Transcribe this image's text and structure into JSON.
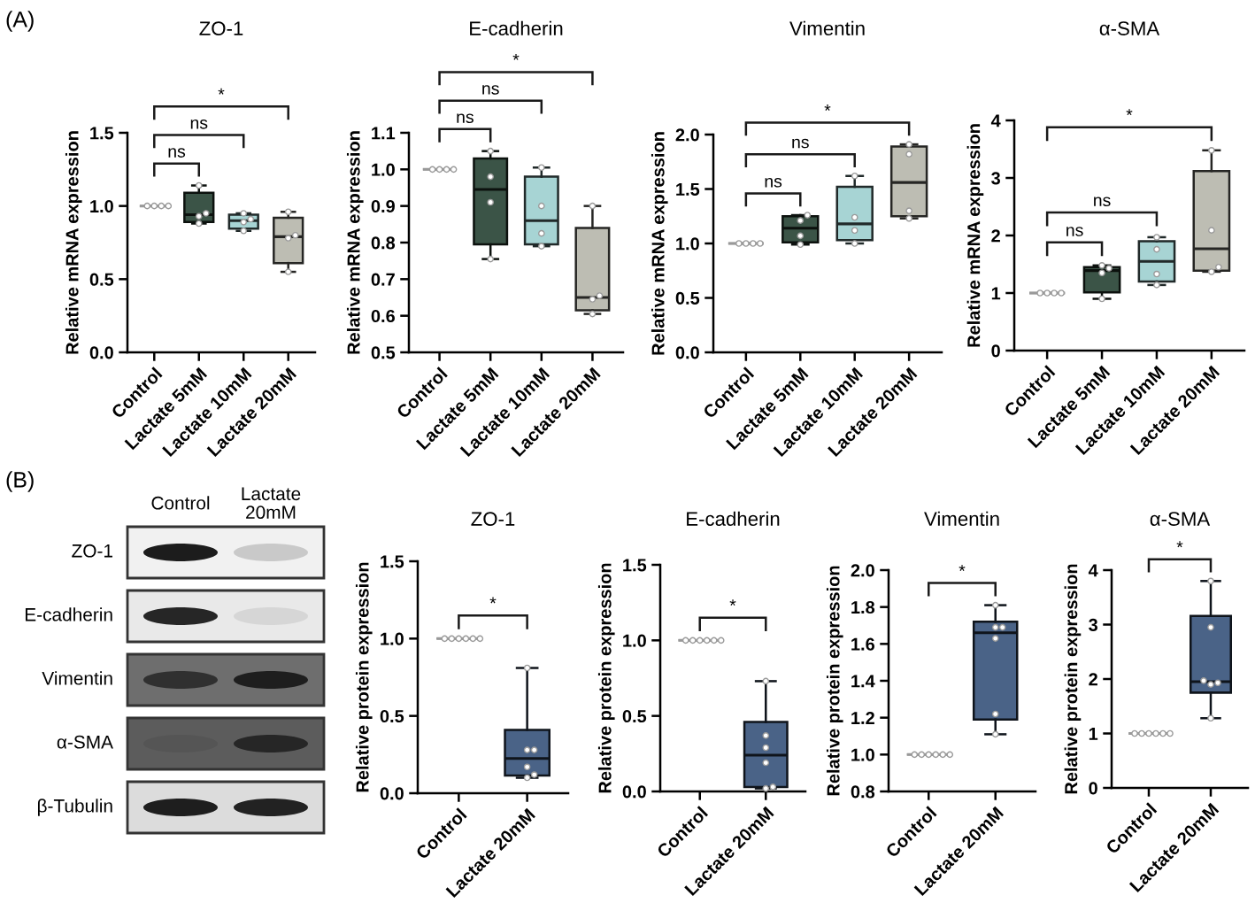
{
  "chart_data": [
    {
      "type": "box",
      "title": "ZO-1",
      "ylabel": "Relative mRNA expression",
      "categories": [
        "Control",
        "Lactate 5mM",
        "Lactate 10mM",
        "Lactate 20mM"
      ],
      "boxes": [
        {
          "low": 1,
          "q1": 1,
          "median": 1,
          "q3": 1,
          "high": 1
        },
        {
          "low": 0.88,
          "q1": 0.89,
          "median": 0.94,
          "q3": 1.09,
          "high": 1.14
        },
        {
          "low": 0.83,
          "q1": 0.845,
          "median": 0.9,
          "q3": 0.94,
          "high": 0.95
        },
        {
          "low": 0.55,
          "q1": 0.61,
          "median": 0.79,
          "q3": 0.92,
          "high": 0.96
        }
      ],
      "colors": [
        "#999999",
        "#3b5447",
        "#a7d4d4",
        "#bdbdb3"
      ],
      "series": [
        {
          "type": "scatter",
          "color": "#ffffff",
          "marker": "circle",
          "x": [
            "Control",
            "Control",
            "Control",
            "Control",
            "Lactate 5mM",
            "Lactate 5mM",
            "Lactate 5mM",
            "Lactate 5mM",
            "Lactate 10mM",
            "Lactate 10mM",
            "Lactate 10mM",
            "Lactate 10mM",
            "Lactate 20mM",
            "Lactate 20mM",
            "Lactate 20mM",
            "Lactate 20mM"
          ],
          "values": [
            1,
            1,
            1,
            1,
            0.88,
            0.93,
            0.95,
            1.14,
            0.83,
            0.89,
            0.91,
            0.95,
            0.55,
            0.78,
            0.8,
            0.96
          ]
        }
      ],
      "ylim": [
        0,
        1.5
      ],
      "yticks": [
        {
          "value": 0,
          "label": "0.0"
        },
        0.5,
        {
          "value": 1,
          "label": "1.0"
        },
        1.5
      ],
      "annotations": [
        "(A)",
        "ns",
        "ns",
        "*"
      ]
    },
    {
      "type": "box",
      "title": "E-cadherin",
      "ylabel": "Relative mRNA expression",
      "categories": [
        "Control",
        "Lactate 5mM",
        "Lactate 10mM",
        "Lactate 20mM"
      ],
      "boxes": [
        {
          "low": 1,
          "q1": 1,
          "median": 1,
          "q3": 1,
          "high": 1
        },
        {
          "low": 0.755,
          "q1": 0.795,
          "median": 0.945,
          "q3": 1.03,
          "high": 1.05
        },
        {
          "low": 0.79,
          "q1": 0.795,
          "median": 0.86,
          "q3": 0.98,
          "high": 1.005
        },
        {
          "low": 0.605,
          "q1": 0.615,
          "median": 0.65,
          "q3": 0.84,
          "high": 0.9
        }
      ],
      "colors": [
        "#999999",
        "#3b5447",
        "#a7d4d4",
        "#bdbdb3"
      ],
      "series": [
        {
          "type": "scatter",
          "color": "#ffffff",
          "marker": "circle",
          "x": [
            "Control",
            "Control",
            "Control",
            "Control",
            "Lactate 5mM",
            "Lactate 5mM",
            "Lactate 5mM",
            "Lactate 5mM",
            "Lactate 10mM",
            "Lactate 10mM",
            "Lactate 10mM",
            "Lactate 10mM",
            "Lactate 20mM",
            "Lactate 20mM",
            "Lactate 20mM",
            "Lactate 20mM"
          ],
          "values": [
            1,
            1,
            1,
            1,
            0.755,
            0.91,
            0.98,
            1.05,
            0.79,
            0.825,
            0.9,
            1.005,
            0.605,
            0.645,
            0.655,
            0.9
          ]
        }
      ],
      "ylim": [
        0.5,
        1.1
      ],
      "yticks": [
        0.5,
        0.6,
        0.7,
        0.8,
        0.9,
        {
          "value": 1,
          "label": "1.0"
        },
        1.1
      ],
      "annotations": [
        "ns",
        "ns",
        "*"
      ]
    },
    {
      "type": "box",
      "title": "Vimentin",
      "ylabel": "Relative mRNA expression",
      "categories": [
        "Control",
        "Lactate 5mM",
        "Lactate 10mM",
        "Lactate 20mM"
      ],
      "boxes": [
        {
          "low": 1,
          "q1": 1,
          "median": 1,
          "q3": 1,
          "high": 1
        },
        {
          "low": 0.99,
          "q1": 1.01,
          "median": 1.14,
          "q3": 1.25,
          "high": 1.26
        },
        {
          "low": 1.0,
          "q1": 1.03,
          "median": 1.18,
          "q3": 1.52,
          "high": 1.62
        },
        {
          "low": 1.23,
          "q1": 1.25,
          "median": 1.56,
          "q3": 1.89,
          "high": 1.91
        }
      ],
      "colors": [
        "#999999",
        "#3b5447",
        "#a7d4d4",
        "#bdbdb3"
      ],
      "series": [
        {
          "type": "scatter",
          "color": "#ffffff",
          "marker": "circle",
          "x": [
            "Control",
            "Control",
            "Control",
            "Control",
            "Lactate 5mM",
            "Lactate 5mM",
            "Lactate 5mM",
            "Lactate 5mM",
            "Lactate 10mM",
            "Lactate 10mM",
            "Lactate 10mM",
            "Lactate 10mM",
            "Lactate 20mM",
            "Lactate 20mM",
            "Lactate 20mM",
            "Lactate 20mM"
          ],
          "values": [
            1,
            1,
            1,
            1,
            0.99,
            1.07,
            1.21,
            1.26,
            1.0,
            1.12,
            1.24,
            1.62,
            1.23,
            1.3,
            1.82,
            1.91
          ]
        }
      ],
      "ylim": [
        0,
        2
      ],
      "yticks": [
        {
          "value": 0,
          "label": "0.0"
        },
        0.5,
        {
          "value": 1,
          "label": "1.0"
        },
        1.5,
        {
          "value": 2,
          "label": "2.0"
        }
      ],
      "annotations": [
        "ns",
        "ns",
        "*"
      ]
    },
    {
      "type": "box",
      "title": "α-SMA",
      "ylabel": "Relative mRNA expression",
      "categories": [
        "Control",
        "Lactate 5mM",
        "Lactate 10mM",
        "Lactate 20mM"
      ],
      "boxes": [
        {
          "low": 1,
          "q1": 1,
          "median": 1,
          "q3": 1,
          "high": 1
        },
        {
          "low": 0.9,
          "q1": 1.01,
          "median": 1.39,
          "q3": 1.45,
          "high": 1.48
        },
        {
          "low": 1.14,
          "q1": 1.2,
          "median": 1.55,
          "q3": 1.9,
          "high": 1.97
        },
        {
          "low": 1.37,
          "q1": 1.39,
          "median": 1.77,
          "q3": 3.12,
          "high": 3.48
        }
      ],
      "colors": [
        "#999999",
        "#3b5447",
        "#a7d4d4",
        "#bdbdb3"
      ],
      "series": [
        {
          "type": "scatter",
          "color": "#ffffff",
          "marker": "circle",
          "x": [
            "Control",
            "Control",
            "Control",
            "Control",
            "Lactate 5mM",
            "Lactate 5mM",
            "Lactate 5mM",
            "Lactate 5mM",
            "Lactate 10mM",
            "Lactate 10mM",
            "Lactate 10mM",
            "Lactate 10mM",
            "Lactate 20mM",
            "Lactate 20mM",
            "Lactate 20mM",
            "Lactate 20mM"
          ],
          "values": [
            1,
            1,
            1,
            1,
            0.9,
            1.35,
            1.43,
            1.48,
            1.14,
            1.33,
            1.76,
            1.97,
            1.37,
            1.45,
            2.09,
            3.48
          ]
        }
      ],
      "ylim": [
        0,
        4
      ],
      "yticks": [
        0,
        1,
        2,
        3,
        4
      ],
      "annotations": [
        "ns",
        "ns",
        "*"
      ]
    },
    {
      "type": "other",
      "categories": [
        "Control",
        "Lactate\n20mM"
      ],
      "y_categories": [
        "ZO-1",
        "E-cadherin",
        "Vimentin",
        "α-SMA",
        "β-Tubulin"
      ],
      "annotations": [
        "(B)"
      ]
    },
    {
      "type": "box",
      "title": "ZO-1",
      "ylabel": "Relative protein expression",
      "categories": [
        "Control",
        "Lactate 20mM"
      ],
      "boxes": [
        {
          "low": 1,
          "q1": 1,
          "median": 1,
          "q3": 1,
          "high": 1
        },
        {
          "low": 0.1,
          "q1": 0.115,
          "median": 0.225,
          "q3": 0.41,
          "high": 0.81
        }
      ],
      "colors": [
        "#999999",
        "#4a6387"
      ],
      "series": [
        {
          "type": "scatter",
          "color": "#ffffff",
          "marker": "circle",
          "x": [
            "Control",
            "Control",
            "Control",
            "Control",
            "Control",
            "Control",
            "Lactate 20mM",
            "Lactate 20mM",
            "Lactate 20mM",
            "Lactate 20mM",
            "Lactate 20mM",
            "Lactate 20mM"
          ],
          "values": [
            1,
            1,
            1,
            1,
            1,
            1,
            0.1,
            0.12,
            0.17,
            0.28,
            0.28,
            0.81
          ]
        }
      ],
      "ylim": [
        0,
        1.5
      ],
      "yticks": [
        {
          "value": 0,
          "label": "0.0"
        },
        0.5,
        {
          "value": 1,
          "label": "1.0"
        },
        1.5
      ],
      "annotations": [
        "*"
      ]
    },
    {
      "type": "box",
      "title": "E-cadherin",
      "ylabel": "Relative protein expression",
      "categories": [
        "Control",
        "Lactate 20mM"
      ],
      "boxes": [
        {
          "low": 1,
          "q1": 1,
          "median": 1,
          "q3": 1,
          "high": 1
        },
        {
          "low": 0.02,
          "q1": 0.03,
          "median": 0.24,
          "q3": 0.46,
          "high": 0.73
        }
      ],
      "colors": [
        "#999999",
        "#4a6387"
      ],
      "series": [
        {
          "type": "scatter",
          "color": "#ffffff",
          "marker": "circle",
          "x": [
            "Control",
            "Control",
            "Control",
            "Control",
            "Control",
            "Control",
            "Lactate 20mM",
            "Lactate 20mM",
            "Lactate 20mM",
            "Lactate 20mM",
            "Lactate 20mM",
            "Lactate 20mM"
          ],
          "values": [
            1,
            1,
            1,
            1,
            1,
            1,
            0.02,
            0.03,
            0.19,
            0.29,
            0.37,
            0.73
          ]
        }
      ],
      "ylim": [
        0,
        1.5
      ],
      "yticks": [
        {
          "value": 0,
          "label": "0.0"
        },
        0.5,
        {
          "value": 1,
          "label": "1.0"
        },
        1.5
      ],
      "annotations": [
        "*"
      ]
    },
    {
      "type": "box",
      "title": "Vimentin",
      "ylabel": "Relative protein expression",
      "categories": [
        "Control",
        "Lactate 20mM"
      ],
      "boxes": [
        {
          "low": 1,
          "q1": 1,
          "median": 1,
          "q3": 1,
          "high": 1
        },
        {
          "low": 1.11,
          "q1": 1.19,
          "median": 1.66,
          "q3": 1.72,
          "high": 1.81
        }
      ],
      "colors": [
        "#999999",
        "#4a6387"
      ],
      "series": [
        {
          "type": "scatter",
          "color": "#ffffff",
          "marker": "circle",
          "x": [
            "Control",
            "Control",
            "Control",
            "Control",
            "Control",
            "Control",
            "Lactate 20mM",
            "Lactate 20mM",
            "Lactate 20mM",
            "Lactate 20mM",
            "Lactate 20mM",
            "Lactate 20mM"
          ],
          "values": [
            1,
            1,
            1,
            1,
            1,
            1,
            1.11,
            1.22,
            1.63,
            1.69,
            1.69,
            1.81
          ]
        }
      ],
      "ylim": [
        0.8,
        2.0
      ],
      "yticks": [
        0.8,
        {
          "value": 1,
          "label": "1.0"
        },
        1.2,
        1.4,
        1.6,
        1.8,
        {
          "value": 2,
          "label": "2.0"
        }
      ],
      "annotations": [
        "*"
      ]
    },
    {
      "type": "box",
      "title": "α-SMA",
      "ylabel": "Relative protein expression",
      "categories": [
        "Control",
        "Lactate 20mM"
      ],
      "boxes": [
        {
          "low": 1,
          "q1": 1,
          "median": 1,
          "q3": 1,
          "high": 1
        },
        {
          "low": 1.28,
          "q1": 1.75,
          "median": 1.95,
          "q3": 3.16,
          "high": 3.8
        }
      ],
      "colors": [
        "#999999",
        "#4a6387"
      ],
      "series": [
        {
          "type": "scatter",
          "color": "#ffffff",
          "marker": "circle",
          "x": [
            "Control",
            "Control",
            "Control",
            "Control",
            "Control",
            "Control",
            "Lactate 20mM",
            "Lactate 20mM",
            "Lactate 20mM",
            "Lactate 20mM",
            "Lactate 20mM",
            "Lactate 20mM"
          ],
          "values": [
            1,
            1,
            1,
            1,
            1,
            1,
            1.28,
            1.9,
            1.93,
            1.97,
            2.95,
            3.8
          ]
        }
      ],
      "ylim": [
        0,
        4
      ],
      "yticks": [
        0,
        1,
        2,
        3,
        4
      ],
      "annotations": [
        "*"
      ]
    }
  ]
}
